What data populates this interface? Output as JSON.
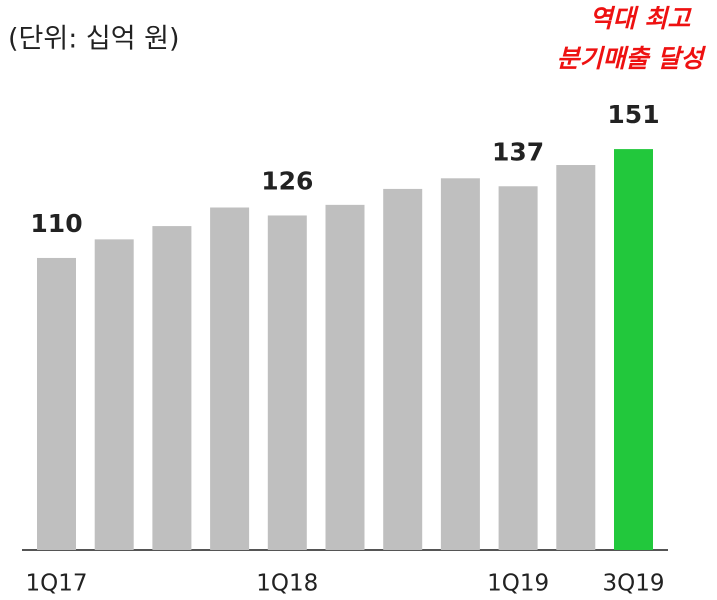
{
  "chart_data": {
    "type": "bar",
    "subtitle": "(단위: 십억 원)",
    "annotation": [
      "역대 최고",
      "분기매출 달성"
    ],
    "categories": [
      "1Q17",
      null,
      null,
      null,
      "1Q18",
      null,
      null,
      null,
      "1Q19",
      null,
      "3Q19"
    ],
    "values": [
      110,
      117,
      122,
      129,
      126,
      130,
      136,
      140,
      137,
      145,
      151
    ],
    "value_labels": [
      "110",
      null,
      null,
      null,
      "126",
      null,
      null,
      null,
      "137",
      null,
      "151"
    ],
    "colors": [
      "#bfbfbf",
      "#bfbfbf",
      "#bfbfbf",
      "#bfbfbf",
      "#bfbfbf",
      "#bfbfbf",
      "#bfbfbf",
      "#bfbfbf",
      "#bfbfbf",
      "#bfbfbf",
      "#22c83c"
    ],
    "ylim": [
      0,
      200
    ]
  }
}
